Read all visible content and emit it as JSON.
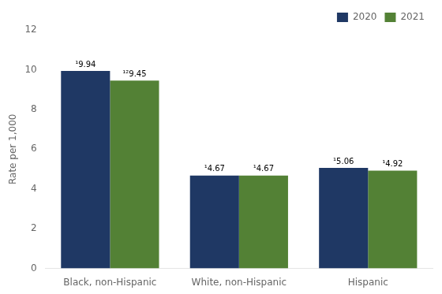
{
  "chart_data": {
    "type": "bar",
    "categories": [
      "Black, non-Hispanic",
      "White, non-Hispanic",
      "Hispanic"
    ],
    "series": [
      {
        "name": "2020",
        "color": "#1f3864",
        "values": [
          9.94,
          4.67,
          5.06
        ],
        "value_labels": [
          "¹9.94",
          "¹4.67",
          "¹5.06"
        ]
      },
      {
        "name": "2021",
        "color": "#538135",
        "values": [
          9.45,
          4.67,
          4.92
        ],
        "value_labels": [
          "¹²9.45",
          "¹4.67",
          "¹4.92"
        ]
      }
    ],
    "ylabel": "Rate per 1,000",
    "ylim": [
      0,
      12
    ],
    "yticks": [
      0,
      2,
      4,
      6,
      8,
      10,
      12
    ],
    "grid": false,
    "legend": "upper right",
    "data_labels": true
  }
}
